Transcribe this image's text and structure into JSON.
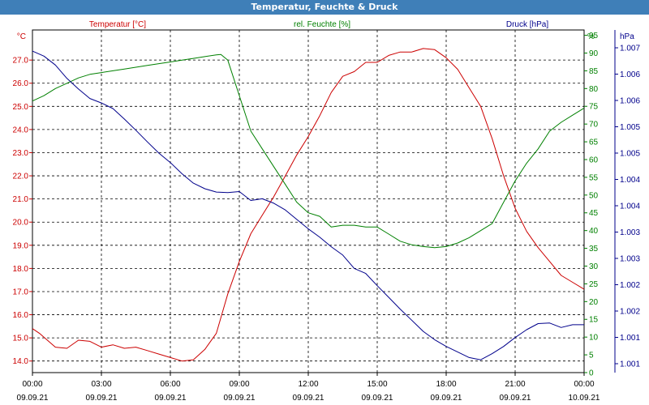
{
  "window": {
    "title": "Temperatur, Feuchte & Druck"
  },
  "chart_data": {
    "type": "line",
    "title": "Temperatur, Feuchte & Druck",
    "x_range_hours": [
      0,
      24
    ],
    "x_ticks": [
      {
        "time": "00:00",
        "date": "09.09.21"
      },
      {
        "time": "03:00",
        "date": "09.09.21"
      },
      {
        "time": "06:00",
        "date": "09.09.21"
      },
      {
        "time": "09:00",
        "date": "09.09.21"
      },
      {
        "time": "12:00",
        "date": "09.09.21"
      },
      {
        "time": "15:00",
        "date": "09.09.21"
      },
      {
        "time": "18:00",
        "date": "09.09.21"
      },
      {
        "time": "21:00",
        "date": "09.09.21"
      },
      {
        "time": "00:00",
        "date": "10.09.21"
      }
    ],
    "grid": true,
    "axes": {
      "left": {
        "unit": "°C",
        "label": "Temperatur [°C]",
        "range": [
          13.5,
          28.3
        ],
        "ticks": [
          "14.0",
          "15.0",
          "16.0",
          "17.0",
          "18.0",
          "19.0",
          "20.0",
          "21.0",
          "22.0",
          "23.0",
          "24.0",
          "25.0",
          "26.0",
          "27.0"
        ],
        "color": "#cc0000"
      },
      "right1": {
        "unit": "%",
        "label": "rel. Feuchte [%]",
        "range": [
          0,
          96.5
        ],
        "ticks": [
          "0",
          "5",
          "10",
          "15",
          "20",
          "25",
          "30",
          "35",
          "40",
          "45",
          "50",
          "55",
          "60",
          "65",
          "70",
          "75",
          "80",
          "85",
          "90",
          "95"
        ],
        "color": "#008000"
      },
      "right2": {
        "unit": "hPa",
        "label": "Druck [hPa]",
        "tick_labels": [
          "1.001",
          "1.001",
          "1.002",
          "1.002",
          "1.003",
          "1.003",
          "1.004",
          "1.004",
          "1.005",
          "1.005",
          "1.006",
          "1.006",
          "1.007"
        ],
        "color": "#00008b"
      }
    },
    "series": [
      {
        "name": "Temperatur [°C]",
        "axis": "left",
        "color": "#cc0000",
        "x": [
          0,
          0.3,
          1,
          1.5,
          2,
          2.5,
          3,
          3.5,
          4,
          4.5,
          5,
          5.5,
          6,
          6.5,
          7,
          7.5,
          8,
          8.5,
          9,
          9.5,
          10,
          10.5,
          11,
          11.5,
          12,
          12.5,
          13,
          13.5,
          14,
          14.5,
          15,
          15.5,
          16,
          16.5,
          17,
          17.5,
          18,
          18.5,
          19,
          19.5,
          20,
          20.5,
          21,
          21.5,
          22,
          22.5,
          23,
          23.5,
          24
        ],
        "y": [
          15.4,
          15.2,
          14.6,
          14.55,
          14.9,
          14.85,
          14.6,
          14.7,
          14.55,
          14.6,
          14.45,
          14.3,
          14.15,
          14.0,
          14.05,
          14.5,
          15.2,
          16.9,
          18.3,
          19.5,
          20.3,
          21.1,
          22.0,
          22.9,
          23.7,
          24.6,
          25.6,
          26.3,
          26.5,
          26.9,
          26.9,
          27.2,
          27.35,
          27.35,
          27.5,
          27.45,
          27.1,
          26.6,
          25.8,
          25.0,
          23.6,
          22.0,
          20.6,
          19.6,
          18.9,
          18.3,
          17.7,
          17.4,
          17.1
        ]
      },
      {
        "name": "rel. Feuchte [%]",
        "axis": "right1",
        "color": "#008000",
        "x": [
          0,
          0.5,
          1,
          1.5,
          2,
          2.5,
          3,
          3.5,
          4,
          4.5,
          5,
          5.5,
          6,
          6.5,
          7,
          7.5,
          8,
          8.2,
          8.5,
          9,
          9.5,
          10,
          10.5,
          11,
          11.5,
          12,
          12.5,
          13,
          13.5,
          14,
          14.5,
          15,
          15.5,
          16,
          16.5,
          17,
          17.5,
          18,
          18.5,
          19,
          19.5,
          20,
          20.5,
          21,
          21.5,
          22,
          22.5,
          23,
          23.5,
          24
        ],
        "y": [
          76.5,
          78,
          80,
          81.5,
          83,
          84,
          84.5,
          85,
          85.5,
          86,
          86.5,
          87,
          87.5,
          88,
          88.5,
          89,
          89.5,
          89.6,
          88,
          78,
          68,
          63,
          58,
          53,
          48,
          45,
          44,
          41,
          41.5,
          41.5,
          41,
          41,
          39,
          37,
          36,
          35.5,
          35.2,
          35.5,
          36.5,
          38,
          40,
          42,
          48,
          54,
          59,
          63,
          68,
          70.5,
          72.5,
          74.5
        ]
      },
      {
        "name": "Druck [hPa]",
        "axis": "right2",
        "color": "#00008b",
        "x": [
          0,
          0.5,
          1,
          1.5,
          2,
          2.5,
          3,
          3.5,
          4,
          4.5,
          5,
          5.5,
          6,
          6.5,
          7,
          7.5,
          8,
          8.5,
          9,
          9.5,
          10,
          10.5,
          11,
          11.5,
          12,
          12.5,
          13,
          13.5,
          14,
          14.5,
          15,
          15.5,
          16,
          16.5,
          17,
          17.5,
          18,
          18.5,
          19,
          19.5,
          20,
          20.5,
          21,
          21.5,
          22,
          22.5,
          23,
          23.5,
          24
        ],
        "y": [
          1.00686,
          1.00677,
          1.00661,
          1.00637,
          1.00618,
          1.00601,
          1.00593,
          1.00583,
          1.00564,
          1.00544,
          1.00523,
          1.00503,
          1.00486,
          1.00466,
          1.00449,
          1.00439,
          1.00433,
          1.00432,
          1.00434,
          1.00418,
          1.00421,
          1.00413,
          1.00401,
          1.00384,
          1.00367,
          1.00352,
          1.00335,
          1.0032,
          1.00296,
          1.00287,
          1.00265,
          1.00244,
          1.00223,
          1.00203,
          1.00183,
          1.00168,
          1.00156,
          1.00146,
          1.00136,
          1.00132,
          1.00143,
          1.00156,
          1.00172,
          1.00186,
          1.00197,
          1.00198,
          1.0019,
          1.00195,
          1.00195
        ]
      }
    ]
  }
}
